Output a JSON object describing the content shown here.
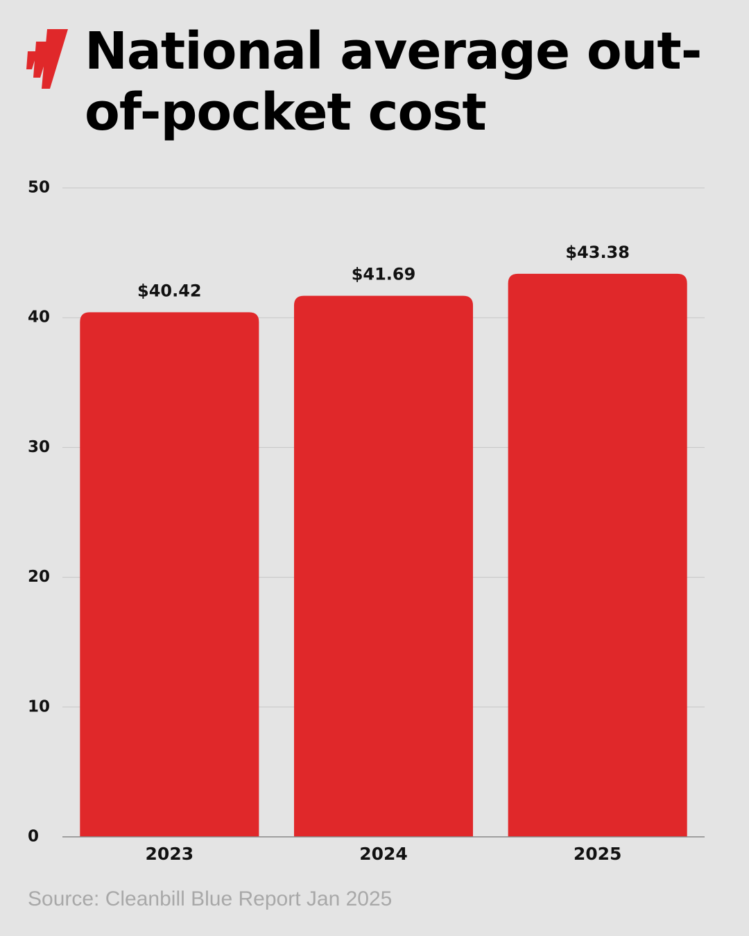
{
  "chart_data": {
    "type": "bar",
    "title": "National average out-of-pocket cost",
    "categories": [
      "2023",
      "2024",
      "2025"
    ],
    "values": [
      40.42,
      41.69,
      43.38
    ],
    "value_labels": [
      "$40.42",
      "$41.69",
      "$43.38"
    ],
    "color": "#e0282a",
    "ylim": [
      0,
      50
    ],
    "yticks": [
      0,
      10,
      20,
      30,
      40,
      50
    ],
    "grid": true,
    "source": "Source: Cleanbill Blue Report Jan 2025"
  }
}
